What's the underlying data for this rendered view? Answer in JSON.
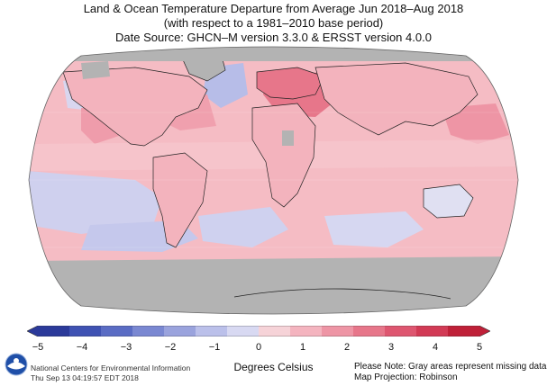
{
  "title": {
    "line1": "Land & Ocean Temperature Departure from Average Jun 2018–Aug 2018",
    "line2": "(with respect to a 1981–2010 base period)",
    "line3": "Date Source: GHCN–M version 3.3.0 & ERSST version 4.0.0"
  },
  "colorbar": {
    "ticks": [
      "−5",
      "−4",
      "−3",
      "−2",
      "−1",
      "0",
      "1",
      "2",
      "3",
      "4",
      "5"
    ],
    "units": "Degrees Celsius",
    "colors": [
      "#2b3a9a",
      "#3f52b3",
      "#5a6cc4",
      "#7a88d2",
      "#9aa3dd",
      "#bbc0ea",
      "#d8d9f2",
      "#f6d3d8",
      "#f4b4bf",
      "#ee95a5",
      "#e7768a",
      "#de5670",
      "#d23a55",
      "#bf2038"
    ]
  },
  "credit": {
    "org": "National Centers for Environmental Information",
    "timestamp": "Thu Sep 13 04:19:57 EDT 2018"
  },
  "notes": {
    "missing": "Please Note: Gray areas represent missing data",
    "projection": "Map Projection: Robinson"
  },
  "map": {
    "missing_color": "#b3b3b3",
    "ocean_base": "#f4b6be"
  }
}
